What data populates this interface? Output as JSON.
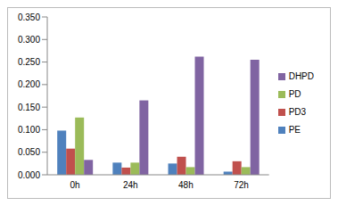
{
  "chart_data": {
    "type": "bar",
    "categories": [
      "0h",
      "24h",
      "48h",
      "72h"
    ],
    "series": [
      {
        "name": "PE",
        "color": "#4f81bd",
        "values": [
          0.098,
          0.027,
          0.025,
          0.007
        ]
      },
      {
        "name": "PD3",
        "color": "#c0504d",
        "values": [
          0.058,
          0.016,
          0.04,
          0.03
        ]
      },
      {
        "name": "PD",
        "color": "#9bbb59",
        "values": [
          0.127,
          0.027,
          0.017,
          0.017
        ]
      },
      {
        "name": "DHPD",
        "color": "#8064a2",
        "values": [
          0.033,
          0.165,
          0.262,
          0.255
        ]
      }
    ],
    "ylim": [
      0,
      0.35
    ],
    "yticks": [
      {
        "value": 0,
        "label": "0.000"
      },
      {
        "value": 0.05,
        "label": "0.050"
      },
      {
        "value": 0.1,
        "label": "0.100"
      },
      {
        "value": 0.15,
        "label": "0.150"
      },
      {
        "value": 0.2,
        "label": "0.200"
      },
      {
        "value": 0.25,
        "label": "0.250"
      },
      {
        "value": 0.3,
        "label": "0.300"
      },
      {
        "value": 0.35,
        "label": "0.350"
      }
    ],
    "grid": false,
    "legend": "right"
  }
}
